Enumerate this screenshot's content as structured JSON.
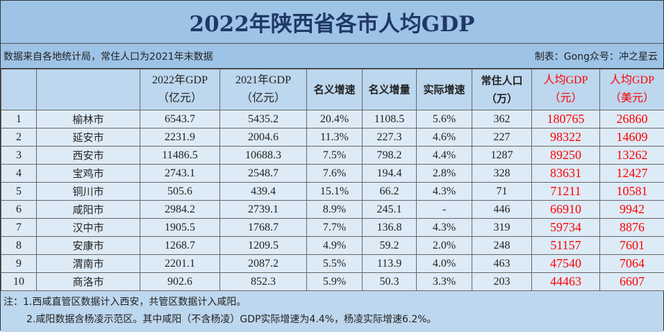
{
  "title": "2022年陕西省各市人均GDP",
  "source_note": "数据来自各地统计局，常住人口为2021年末数据",
  "credit": "制表：Gong众号：冲之星云",
  "headers": {
    "gdp2022": [
      "2022年GDP",
      "（亿元）"
    ],
    "gdp2021": [
      "2021年GDP",
      "（亿元）"
    ],
    "nominal_rate": "名义增速",
    "nominal_increase": "名义增量",
    "real_rate": "实际增速",
    "population": [
      "常住人口",
      "（万）"
    ],
    "per_capita_cny": [
      "人均GDP",
      "（元）"
    ],
    "per_capita_usd": [
      "人均GDP",
      "（美元）"
    ]
  },
  "rows": [
    [
      "1",
      "榆林市",
      "6543.7",
      "5435.2",
      "20.4%",
      "1108.5",
      "5.6%",
      "362",
      "180765",
      "26860"
    ],
    [
      "2",
      "延安市",
      "2231.9",
      "2004.6",
      "11.3%",
      "227.3",
      "4.6%",
      "227",
      "98322",
      "14609"
    ],
    [
      "3",
      "西安市",
      "11486.5",
      "10688.3",
      "7.5%",
      "798.2",
      "4.4%",
      "1287",
      "89250",
      "13262"
    ],
    [
      "4",
      "宝鸡市",
      "2743.1",
      "2548.7",
      "7.6%",
      "194.4",
      "2.8%",
      "328",
      "83631",
      "12427"
    ],
    [
      "5",
      "铜川市",
      "505.6",
      "439.4",
      "15.1%",
      "66.2",
      "4.3%",
      "71",
      "71211",
      "10581"
    ],
    [
      "6",
      "咸阳市",
      "2984.2",
      "2739.1",
      "8.9%",
      "245.1",
      "-",
      "446",
      "66910",
      "9942"
    ],
    [
      "7",
      "汉中市",
      "1905.5",
      "1768.7",
      "7.7%",
      "136.8",
      "4.3%",
      "319",
      "59734",
      "8876"
    ],
    [
      "8",
      "安康市",
      "1268.7",
      "1209.5",
      "4.9%",
      "59.2",
      "2.0%",
      "248",
      "51157",
      "7601"
    ],
    [
      "9",
      "渭南市",
      "2201.1",
      "2087.2",
      "5.5%",
      "113.9",
      "4.0%",
      "463",
      "47540",
      "7064"
    ],
    [
      "10",
      "商洛市",
      "902.6",
      "852.3",
      "5.9%",
      "50.3",
      "3.3%",
      "203",
      "44463",
      "6607"
    ]
  ],
  "notes": [
    "注：1.西咸直管区数据计入西安，共管区数据计入咸阳。",
    "2.咸阳数据含杨凌示范区。其中咸阳（不含杨凌）GDP实际增速为4.4%，杨凌实际增速6.2%。"
  ],
  "colors": {
    "title_bg": "#9dc3e6",
    "title_text": "#1f3864",
    "header_bg": "#bdd7ee",
    "row_bg": "#ddebf7",
    "highlight": "#ff0000"
  }
}
